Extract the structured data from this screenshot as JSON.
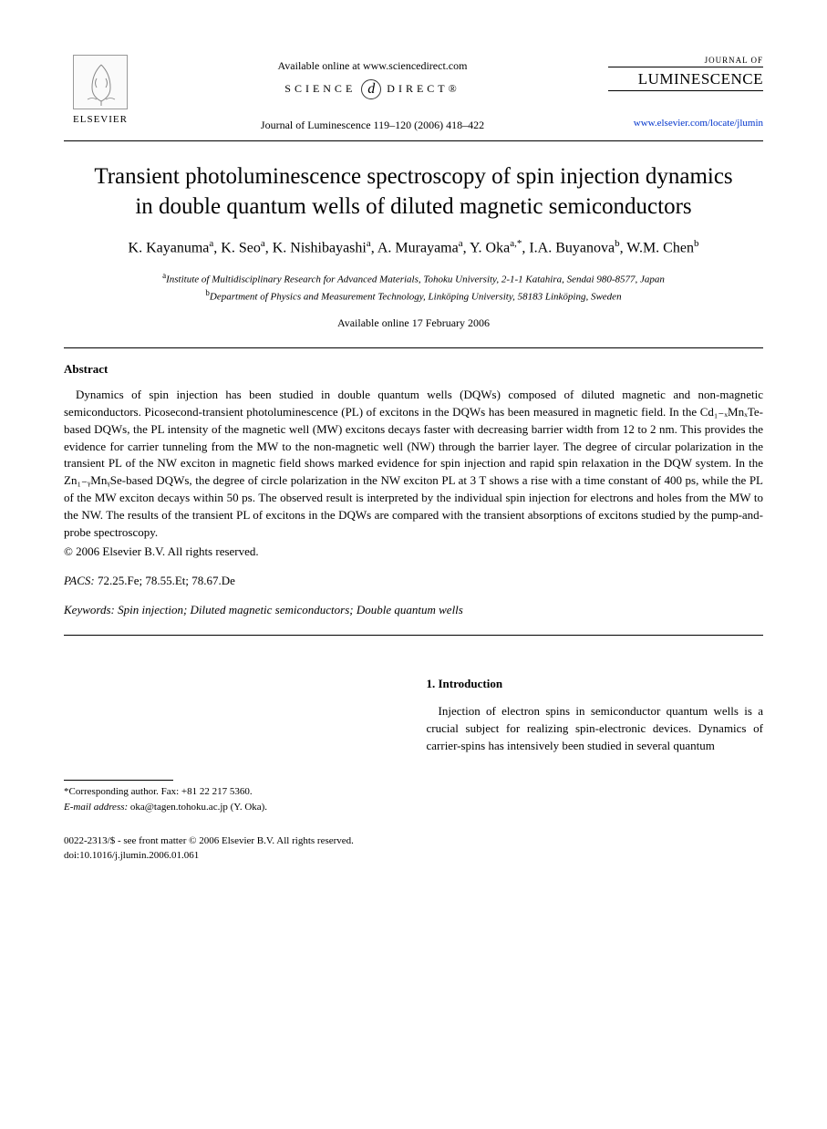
{
  "header": {
    "publisher_label": "ELSEVIER",
    "available_online_at": "Available online at www.sciencedirect.com",
    "science_direct": "SCIENCE",
    "science_direct2": "DIRECT®",
    "journal_ref": "Journal of Luminescence 119–120 (2006) 418–422",
    "journal_small": "JOURNAL OF",
    "journal_name": "LUMINESCENCE",
    "journal_url": "www.elsevier.com/locate/jlumin"
  },
  "title": "Transient photoluminescence spectroscopy of spin injection dynamics in double quantum wells of diluted magnetic semiconductors",
  "authors_html": "K. Kayanuma<sup>a</sup>, K. Seo<sup>a</sup>, K. Nishibayashi<sup>a</sup>, A. Murayama<sup>a</sup>, Y. Oka<sup>a,*</sup>, I.A. Buyanova<sup>b</sup>, W.M. Chen<sup>b</sup>",
  "affiliations": {
    "a": "Institute of Multidisciplinary Research for Advanced Materials, Tohoku University, 2-1-1 Katahira, Sendai 980-8577, Japan",
    "b": "Department of Physics and Measurement Technology, Linköping University, 58183 Linköping, Sweden"
  },
  "available_online": "Available online 17 February 2006",
  "abstract": {
    "heading": "Abstract",
    "body": "Dynamics of spin injection has been studied in double quantum wells (DQWs) composed of diluted magnetic and non-magnetic semiconductors. Picosecond-transient photoluminescence (PL) of excitons in the DQWs has been measured in magnetic field. In the Cd₁₋ₓMnₓTe-based DQWs, the PL intensity of the magnetic well (MW) excitons decays faster with decreasing barrier width from 12 to 2 nm. This provides the evidence for carrier tunneling from the MW to the non-magnetic well (NW) through the barrier layer. The degree of circular polarization in the transient PL of the NW exciton in magnetic field shows marked evidence for spin injection and rapid spin relaxation in the DQW system. In the Zn₁₋ᵧMnᵧSe-based DQWs, the degree of circle polarization in the NW exciton PL at 3 T shows a rise with a time constant of 400 ps, while the PL of the MW exciton decays within 50 ps. The observed result is interpreted by the individual spin injection for electrons and holes from the MW to the NW. The results of the transient PL of excitons in the DQWs are compared with the transient absorptions of excitons studied by the pump-and-probe spectroscopy.",
    "copyright": "© 2006 Elsevier B.V. All rights reserved."
  },
  "pacs": {
    "label": "PACS:",
    "value": "72.25.Fe; 78.55.Et; 78.67.De"
  },
  "keywords": {
    "label": "Keywords:",
    "value": "Spin injection; Diluted magnetic semiconductors; Double quantum wells"
  },
  "intro": {
    "heading": "1. Introduction",
    "body": "Injection of electron spins in semiconductor quantum wells is a crucial subject for realizing spin-electronic devices. Dynamics of carrier-spins has intensively been studied in several quantum"
  },
  "corresponding": {
    "line1": "*Corresponding author. Fax: +81 22 217 5360.",
    "email_label": "E-mail address:",
    "email": "oka@tagen.tohoku.ac.jp (Y. Oka)."
  },
  "footer": {
    "line1": "0022-2313/$ - see front matter © 2006 Elsevier B.V. All rights reserved.",
    "line2": "doi:10.1016/j.jlumin.2006.01.061"
  },
  "colors": {
    "link": "#0033cc",
    "text": "#000000",
    "bg": "#ffffff"
  }
}
